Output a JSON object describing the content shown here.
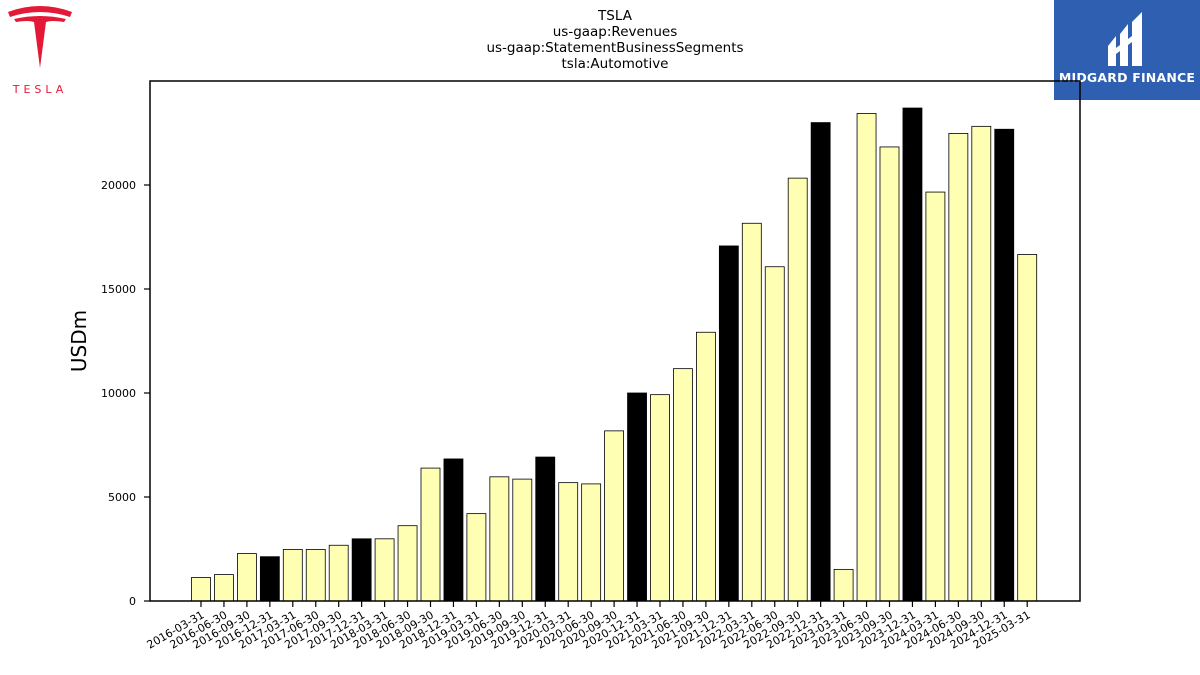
{
  "chart_data": {
    "type": "bar",
    "title_lines": [
      "TSLA",
      "us-gaap:Revenues",
      "us-gaap:StatementBusinessSegments",
      "tsla:Automotive"
    ],
    "ylabel": "USDm",
    "xlabel": "",
    "ylim": [
      0,
      25000
    ],
    "yticks": [
      0,
      5000,
      10000,
      15000,
      20000
    ],
    "grid": false,
    "categories": [
      "2016-03-31",
      "2016-06-30",
      "2016-09-30",
      "2016-12-31",
      "2017-03-31",
      "2017-06-30",
      "2017-09-30",
      "2017-12-31",
      "2018-03-31",
      "2018-06-30",
      "2018-09-30",
      "2018-12-31",
      "2019-03-31",
      "2019-06-30",
      "2019-09-30",
      "2019-12-31",
      "2020-03-31",
      "2020-06-30",
      "2020-09-30",
      "2020-12-31",
      "2021-03-31",
      "2021-06-30",
      "2021-09-30",
      "2021-12-31",
      "2022-03-31",
      "2022-06-30",
      "2022-09-30",
      "2022-12-31",
      "2023-03-31",
      "2023-06-30",
      "2023-09-30",
      "2023-12-31",
      "2024-03-31",
      "2024-06-30",
      "2024-09-30",
      "2024-12-31",
      "2025-03-31"
    ],
    "values": [
      1130,
      1270,
      2280,
      2130,
      2480,
      2480,
      2680,
      2990,
      2990,
      3620,
      6390,
      6830,
      4200,
      5970,
      5860,
      6920,
      5690,
      5630,
      8180,
      10000,
      9920,
      11170,
      12920,
      17070,
      18160,
      16070,
      20330,
      23000,
      1520,
      23440,
      21830,
      23700,
      19660,
      22480,
      22820,
      22680,
      16660
    ],
    "colors": {
      "quarter": "#ffffb3",
      "year_end": "#000000",
      "edge": "#000000"
    },
    "year_end_suffix": "-12-31"
  },
  "logos": {
    "tesla": {
      "wordmark": "TESLA",
      "color": "#e31937"
    },
    "midgard": {
      "wordmark": "MIDGARD FINANCE",
      "background": "#2f5fb0"
    }
  }
}
